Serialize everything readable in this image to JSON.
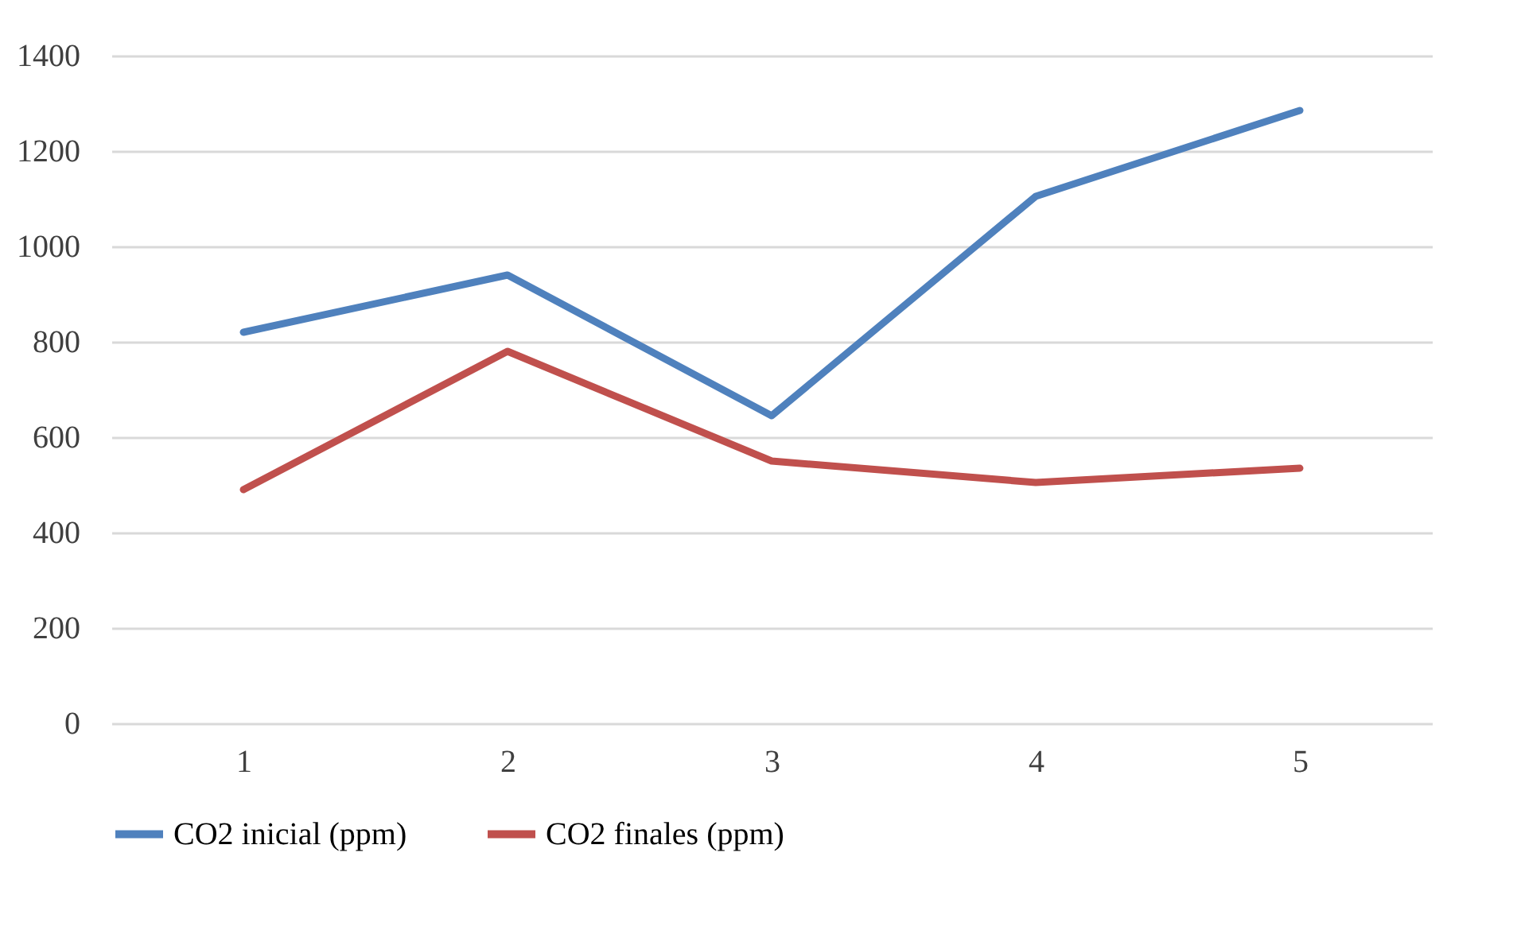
{
  "chart_data": {
    "type": "line",
    "categories": [
      "1",
      "2",
      "3",
      "4",
      "5"
    ],
    "series": [
      {
        "name": "CO2 inicial (ppm)",
        "color": "#4f81bd",
        "values": [
          820,
          940,
          645,
          1105,
          1285
        ]
      },
      {
        "name": "CO2 finales (ppm)",
        "color": "#c0504d",
        "values": [
          490,
          780,
          550,
          505,
          535
        ]
      }
    ],
    "ylim": [
      0,
      1400
    ],
    "yticks": [
      0,
      200,
      400,
      600,
      800,
      1000,
      1200,
      1400
    ],
    "grid": "y",
    "legend": "bottom",
    "marker": "none",
    "line_style": "solid"
  }
}
